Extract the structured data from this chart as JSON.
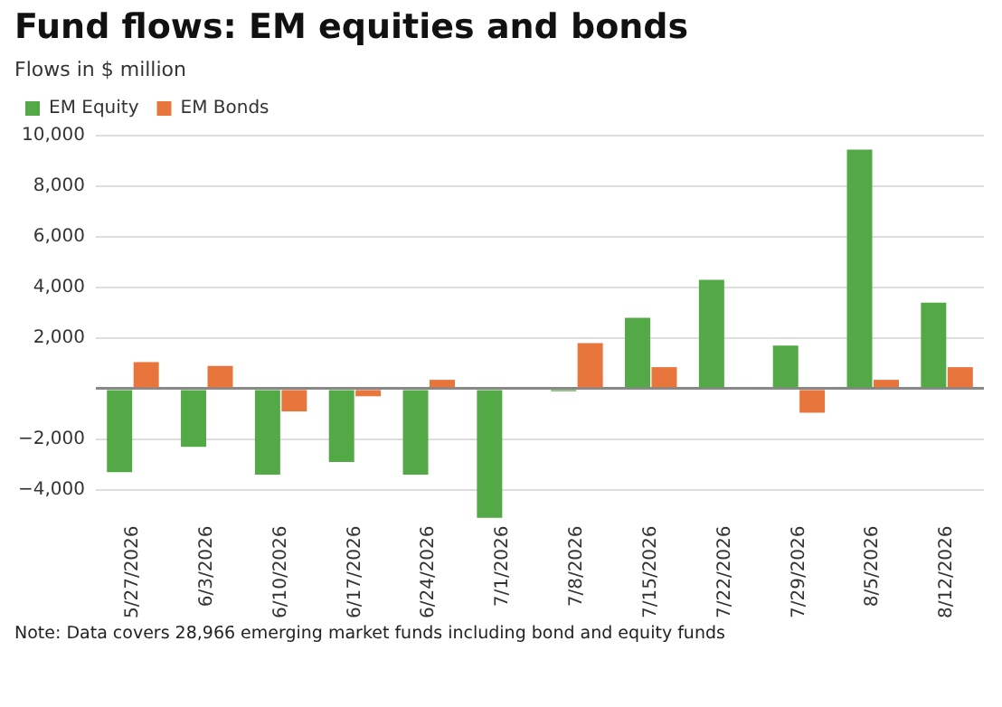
{
  "chart_data": {
    "type": "bar",
    "title": "Fund flows: EM equities and bonds",
    "subtitle": "Flows in $ million",
    "categories": [
      "5/27/2026",
      "6/3/2026",
      "6/10/2026",
      "6/17/2026",
      "6/24/2026",
      "7/1/2026",
      "7/8/2026",
      "7/15/2026",
      "7/22/2026",
      "7/29/2026",
      "8/5/2026",
      "8/12/2026"
    ],
    "series": [
      {
        "name": "EM Equity",
        "color": "#53a945",
        "values": [
          -3300,
          -2300,
          -3400,
          -2900,
          -3400,
          -5100,
          -100,
          2800,
          4300,
          1700,
          9450,
          3400
        ]
      },
      {
        "name": "EM Bonds",
        "color": "#e8763c",
        "values": [
          1050,
          900,
          -900,
          -300,
          350,
          null,
          1800,
          850,
          50,
          -950,
          350,
          850
        ]
      }
    ],
    "ylim": [
      -5200,
      10000
    ],
    "yticks": [
      {
        "value": -4000,
        "label": "−4,000"
      },
      {
        "value": -2000,
        "label": "−2,000"
      },
      {
        "value": 0,
        "label": null
      },
      {
        "value": 2000,
        "label": "2,000"
      },
      {
        "value": 4000,
        "label": "4,000"
      },
      {
        "value": 6000,
        "label": "6,000"
      },
      {
        "value": 8000,
        "label": "8,000"
      },
      {
        "value": 10000,
        "label": "10,000"
      }
    ],
    "grid": "y",
    "legend": "top left",
    "annotations": [
      "Note: Data covers 28,966 emerging market funds including bond and equity funds"
    ]
  }
}
